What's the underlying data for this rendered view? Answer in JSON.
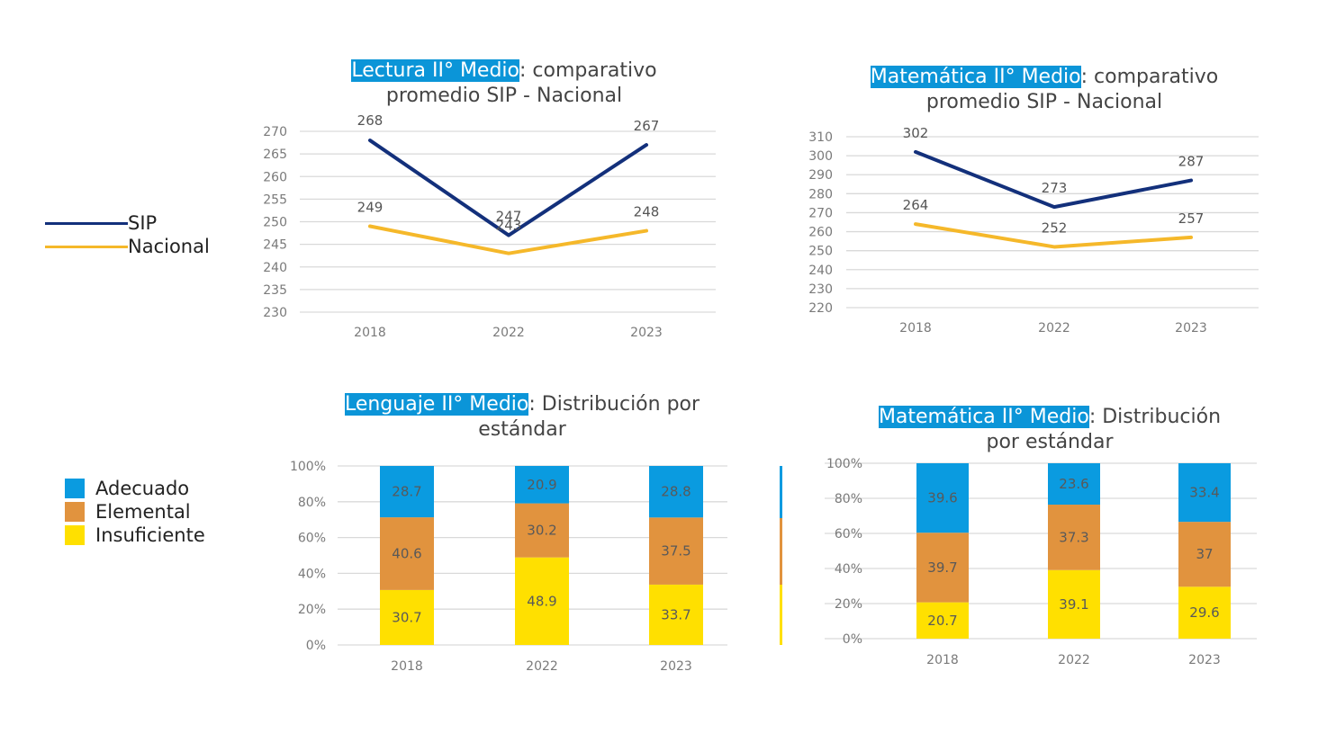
{
  "charts": {
    "lectura": {
      "title_hl": "Lectura II° Medio",
      "title_rest": ": comparativo",
      "title_line2": "promedio SIP - Nacional"
    },
    "matematica_line": {
      "title_hl": "Matemática II° Medio",
      "title_rest": ": comparativo",
      "title_line2": "promedio SIP - Nacional"
    },
    "lenguaje": {
      "title_hl": "Lenguaje II° Medio",
      "title_rest": ": Distribución por",
      "title_line2": "estándar"
    },
    "matematica_bar": {
      "title_hl": "Matemática II° Medio",
      "title_rest": ": Distribución",
      "title_line2": "por estándar"
    }
  },
  "legend_lines": {
    "sip": "SIP",
    "nacional": "Nacional"
  },
  "legend_bars": {
    "adecuado": "Adecuado",
    "elemental": "Elemental",
    "insuficiente": "Insuficiente"
  },
  "colors": {
    "sip": "#13307b",
    "nacional": "#f5b82a",
    "adecuado": "#0a9be0",
    "elemental": "#e1933e",
    "insuficiente": "#ffe000",
    "title_highlight": "#0b95d8"
  },
  "chart_data": [
    {
      "type": "line",
      "title": "Lectura II° Medio: comparativo promedio SIP - Nacional",
      "categories": [
        "2018",
        "2022",
        "2023"
      ],
      "series": [
        {
          "name": "SIP",
          "values": [
            268,
            247,
            267
          ]
        },
        {
          "name": "Nacional",
          "values": [
            249,
            243,
            248
          ]
        }
      ],
      "ylim": [
        230,
        270
      ],
      "yticks": [
        230,
        235,
        240,
        245,
        250,
        255,
        260,
        265,
        270
      ],
      "grid": true,
      "legend": "left"
    },
    {
      "type": "line",
      "title": "Matemática II° Medio: comparativo promedio SIP - Nacional",
      "categories": [
        "2018",
        "2022",
        "2023"
      ],
      "series": [
        {
          "name": "SIP",
          "values": [
            302,
            273,
            287
          ]
        },
        {
          "name": "Nacional",
          "values": [
            264,
            252,
            257
          ]
        }
      ],
      "ylim": [
        220,
        310
      ],
      "yticks": [
        220,
        230,
        240,
        250,
        260,
        270,
        280,
        290,
        300,
        310
      ],
      "grid": true,
      "legend": "left"
    },
    {
      "type": "bar",
      "stacked": true,
      "title": "Lenguaje II° Medio: Distribución por estándar",
      "categories": [
        "2018",
        "2022",
        "2023"
      ],
      "series": [
        {
          "name": "Insuficiente",
          "values": [
            30.7,
            48.9,
            33.7
          ]
        },
        {
          "name": "Elemental",
          "values": [
            40.6,
            30.2,
            37.5
          ]
        },
        {
          "name": "Adecuado",
          "values": [
            28.7,
            20.9,
            28.8
          ]
        }
      ],
      "ylim": [
        0,
        100
      ],
      "yticks": [
        "0%",
        "20%",
        "40%",
        "60%",
        "80%",
        "100%"
      ],
      "grid": true,
      "legend": "left"
    },
    {
      "type": "bar",
      "stacked": true,
      "title": "Matemática II° Medio: Distribución por estándar",
      "categories": [
        "2018",
        "2022",
        "2023"
      ],
      "series": [
        {
          "name": "Insuficiente",
          "values": [
            20.7,
            39.1,
            29.6
          ]
        },
        {
          "name": "Elemental",
          "values": [
            39.7,
            37.3,
            37
          ]
        },
        {
          "name": "Adecuado",
          "values": [
            39.6,
            23.6,
            33.4
          ]
        }
      ],
      "ylim": [
        0,
        100
      ],
      "yticks": [
        "0%",
        "20%",
        "40%",
        "60%",
        "80%",
        "100%"
      ],
      "grid": true,
      "legend": "left"
    }
  ]
}
